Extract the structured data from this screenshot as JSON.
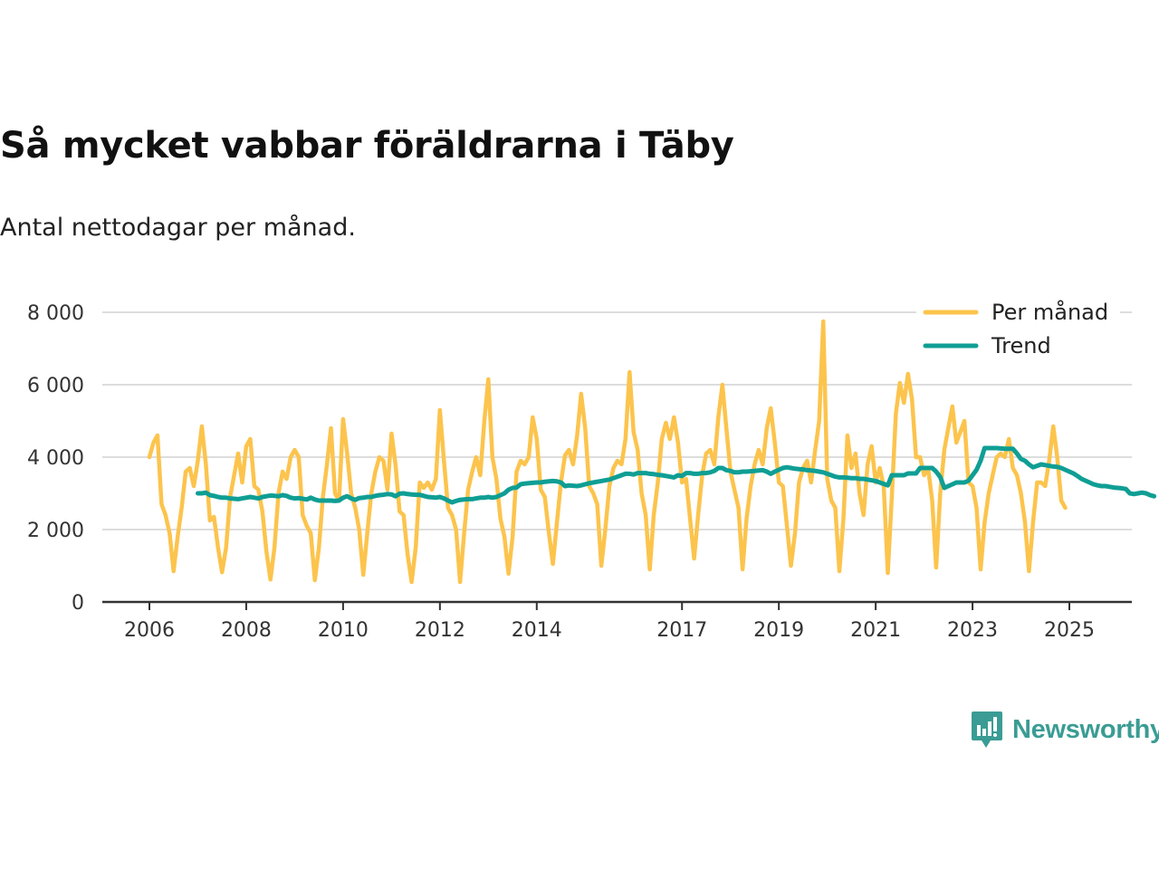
{
  "title": "Så mycket vabbar föräldrarna i Täby",
  "subtitle": "Antal nettodagar per månad.",
  "brand": {
    "name": "Newsworthy",
    "icon": "newsworthy-logo-icon"
  },
  "colors": {
    "monthly": "#fcc44d",
    "trend": "#0f9e94",
    "grid": "#dddddd",
    "axis": "#333333"
  },
  "chart_data": {
    "type": "line",
    "title": "Så mycket vabbar föräldrarna i Täby",
    "subtitle": "Antal nettodagar per månad.",
    "xlabel": "",
    "ylabel": "",
    "x_range": [
      "2006-01",
      "2025-06"
    ],
    "ylim": [
      0,
      8000
    ],
    "y_ticks": [
      0,
      2000,
      4000,
      6000,
      8000
    ],
    "y_tick_labels": [
      "0",
      "2 000",
      "4 000",
      "6 000",
      "8 000"
    ],
    "x_ticks": [
      {
        "date": "2006-01",
        "label": "2006"
      },
      {
        "date": "2008-01",
        "label": "2008"
      },
      {
        "date": "2010-01",
        "label": "2010"
      },
      {
        "date": "2012-01",
        "label": "2012"
      },
      {
        "date": "2014-01",
        "label": "2014"
      },
      {
        "date": "2017-01",
        "label": "2017"
      },
      {
        "date": "2019-01",
        "label": "2019"
      },
      {
        "date": "2021-01",
        "label": "2021"
      },
      {
        "date": "2023-01",
        "label": "2023"
      },
      {
        "date": "2025-01",
        "label": "2025"
      }
    ],
    "grid": "horizontal",
    "legend_position": "top-right",
    "series": [
      {
        "name": "Per månad",
        "color": "#fcc44d",
        "start": "2006-01",
        "values": [
          4000,
          4400,
          4600,
          2700,
          2400,
          1900,
          850,
          1800,
          2600,
          3600,
          3700,
          3200,
          3900,
          4850,
          3800,
          2250,
          2350,
          1500,
          820,
          1500,
          2900,
          3500,
          4100,
          3300,
          4300,
          4500,
          3200,
          3100,
          2500,
          1400,
          620,
          1500,
          3000,
          3600,
          3400,
          4000,
          4200,
          4000,
          2400,
          2100,
          1900,
          600,
          1500,
          2900,
          3800,
          4800,
          3000,
          2800,
          5050,
          4100,
          3000,
          2600,
          2000,
          750,
          1900,
          3000,
          3600,
          4000,
          3900,
          3100,
          4650,
          3800,
          2500,
          2400,
          1300,
          550,
          1500,
          3300,
          3150,
          3300,
          3100,
          3400,
          5300,
          3900,
          2600,
          2400,
          2000,
          550,
          1900,
          3100,
          3600,
          4000,
          3500,
          5000,
          6150,
          4000,
          3400,
          2300,
          1800,
          780,
          1800,
          3600,
          3900,
          3800,
          4000,
          5100,
          4500,
          3100,
          2900,
          1900,
          1050,
          2200,
          3300,
          4050,
          4200,
          3800,
          4600,
          5750,
          4800,
          3200,
          3000,
          2700,
          1000,
          2000,
          3200,
          3700,
          3900,
          3800,
          4500,
          6350,
          4700,
          4200,
          3000,
          2400,
          900,
          2400,
          3300,
          4500,
          4950,
          4500,
          5100,
          4400,
          3300,
          3400,
          2300,
          1200,
          2400,
          3500,
          4100,
          4200,
          3800,
          5100,
          6000,
          4800,
          3600,
          3100,
          2600,
          900,
          2300,
          3200,
          3800,
          4200,
          3800,
          4800,
          5350,
          4400,
          3300,
          3200,
          2100,
          1000,
          1900,
          3300,
          3700,
          3900,
          3300,
          4200,
          5000,
          7750,
          3400,
          2800,
          2600,
          850,
          2300,
          4600,
          3700,
          4100,
          3000,
          2400,
          3800,
          4300,
          3300,
          3700,
          3200,
          800,
          2900,
          5200,
          6050,
          5500,
          6300,
          5600,
          4000,
          4000,
          3500,
          3700,
          2800,
          950,
          3000,
          4200,
          4800,
          5400,
          4400,
          4700,
          5000,
          3300,
          3200,
          2600,
          900,
          2200,
          3000,
          3500,
          4000,
          4100,
          4000,
          4500,
          3700,
          3500,
          3000,
          2200,
          850,
          2200,
          3300,
          3300,
          3200,
          3900,
          4850,
          4000,
          2800,
          2600
        ]
      },
      {
        "name": "Trend",
        "color": "#0f9e94",
        "start": "2007-01",
        "values": [
          3000,
          3000,
          3020,
          2950,
          2930,
          2900,
          2880,
          2880,
          2860,
          2850,
          2840,
          2860,
          2880,
          2900,
          2880,
          2860,
          2900,
          2920,
          2940,
          2930,
          2920,
          2950,
          2930,
          2880,
          2860,
          2870,
          2850,
          2830,
          2880,
          2830,
          2800,
          2800,
          2800,
          2800,
          2790,
          2800,
          2880,
          2920,
          2860,
          2820,
          2870,
          2880,
          2900,
          2900,
          2930,
          2950,
          2960,
          2980,
          2970,
          2920,
          2990,
          3000,
          2980,
          2970,
          2960,
          2960,
          2930,
          2900,
          2890,
          2880,
          2900,
          2860,
          2800,
          2750,
          2790,
          2820,
          2830,
          2840,
          2840,
          2860,
          2880,
          2880,
          2900,
          2880,
          2900,
          2950,
          3000,
          3100,
          3150,
          3160,
          3250,
          3270,
          3280,
          3290,
          3300,
          3300,
          3320,
          3330,
          3340,
          3330,
          3300,
          3200,
          3220,
          3210,
          3200,
          3220,
          3250,
          3280,
          3300,
          3320,
          3340,
          3360,
          3380,
          3420,
          3460,
          3500,
          3540,
          3540,
          3520,
          3560,
          3560,
          3560,
          3540,
          3530,
          3510,
          3500,
          3480,
          3460,
          3440,
          3500,
          3480,
          3560,
          3560,
          3540,
          3540,
          3560,
          3560,
          3580,
          3620,
          3700,
          3700,
          3640,
          3620,
          3580,
          3580,
          3600,
          3600,
          3610,
          3620,
          3630,
          3640,
          3600,
          3540,
          3600,
          3650,
          3700,
          3720,
          3700,
          3680,
          3670,
          3660,
          3640,
          3630,
          3620,
          3600,
          3580,
          3540,
          3500,
          3460,
          3440,
          3440,
          3430,
          3420,
          3420,
          3400,
          3400,
          3380,
          3360,
          3340,
          3300,
          3260,
          3220,
          3500,
          3500,
          3500,
          3500,
          3550,
          3550,
          3550,
          3700,
          3700,
          3700,
          3700,
          3600,
          3450,
          3150,
          3200,
          3250,
          3300,
          3300,
          3300,
          3350,
          3500,
          3650,
          3900,
          4250,
          4250,
          4250,
          4250,
          4240,
          4230,
          4230,
          4230,
          4100,
          3950,
          3900,
          3800,
          3720,
          3760,
          3800,
          3780,
          3760,
          3740,
          3730,
          3700,
          3650,
          3600,
          3550,
          3480,
          3400,
          3350,
          3300,
          3250,
          3220,
          3200,
          3200,
          3180,
          3160,
          3150,
          3140,
          3120,
          3000,
          2980,
          3000,
          3020,
          3000,
          2950,
          2920
        ]
      }
    ]
  }
}
